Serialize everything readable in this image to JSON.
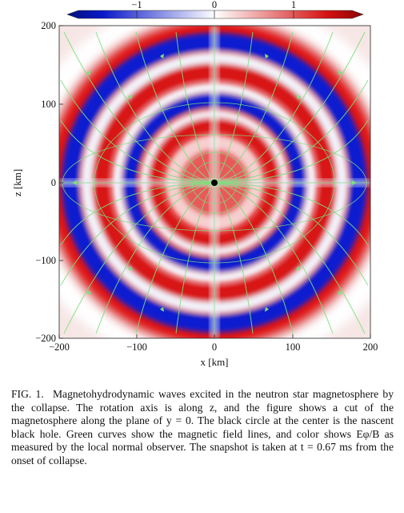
{
  "figure": {
    "colorbar": {
      "ticks": [
        "−1",
        "0",
        "1"
      ],
      "colors": {
        "neg": "#0a18c8",
        "zero": "#ffffff",
        "pos": "#d41010"
      }
    },
    "plot": {
      "x_ticks": [
        "−200",
        "−100",
        "0",
        "100",
        "200"
      ],
      "y_ticks": [
        "200",
        "100",
        "0",
        "−100",
        "−200"
      ],
      "xlabel": "x [km]",
      "ylabel": "z [km]",
      "field_line_color": "#7de07d",
      "black_hole_color": "#000000"
    }
  },
  "caption": {
    "label": "FIG. 1.",
    "text": "Magnetohydrodynamic waves excited in the neutron star magnetosphere by the collapse. The rotation axis is along z, and the figure shows a cut of the magnetosphere along the plane of y = 0. The black circle at the center is the nascent black hole. Green curves show the magnetic field lines, and color shows Eφ/B as measured by the local normal observer. The snapshot is taken at t = 0.67 ms from the onset of collapse."
  }
}
